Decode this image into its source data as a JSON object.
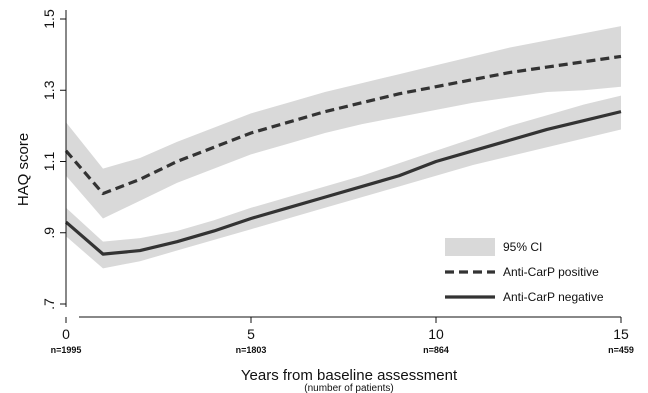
{
  "chart_data": {
    "type": "line",
    "title": "",
    "xlabel": "Years from baseline assessment",
    "xlabel_sub": "(number of patients)",
    "ylabel": "HAQ score",
    "xlim": [
      0,
      15
    ],
    "ylim": [
      0.7,
      1.5
    ],
    "x_ticks": [
      0,
      5,
      10,
      15
    ],
    "x_tick_labels": [
      "0",
      "5",
      "10",
      "15"
    ],
    "y_ticks": [
      0.7,
      0.9,
      1.1,
      1.3,
      1.5
    ],
    "y_tick_labels": [
      ".7",
      ".9",
      "1.1",
      "1.3",
      "1.5"
    ],
    "patient_counts": [
      "n=1995",
      "n=1803",
      "n=864",
      "n=459"
    ],
    "grid": false,
    "legend_position": "bottom-right",
    "legend": [
      {
        "label": "95% CI",
        "kind": "band"
      },
      {
        "label": "Anti-CarP positive",
        "kind": "dashed"
      },
      {
        "label": "Anti-CarP negative",
        "kind": "solid"
      }
    ],
    "x": [
      0,
      1,
      2,
      3,
      4,
      5,
      6,
      7,
      8,
      9,
      10,
      11,
      12,
      13,
      14,
      15
    ],
    "series": [
      {
        "name": "Anti-CarP positive",
        "style": "dashed",
        "color": "#333333",
        "values": [
          1.13,
          1.01,
          1.05,
          1.1,
          1.14,
          1.18,
          1.21,
          1.24,
          1.265,
          1.29,
          1.31,
          1.33,
          1.35,
          1.365,
          1.38,
          1.395
        ],
        "ci_lower": [
          1.06,
          0.94,
          0.99,
          1.04,
          1.08,
          1.12,
          1.15,
          1.18,
          1.205,
          1.225,
          1.245,
          1.265,
          1.28,
          1.295,
          1.3,
          1.31
        ],
        "ci_upper": [
          1.21,
          1.08,
          1.11,
          1.155,
          1.195,
          1.235,
          1.265,
          1.295,
          1.32,
          1.345,
          1.37,
          1.395,
          1.42,
          1.44,
          1.46,
          1.48
        ]
      },
      {
        "name": "Anti-CarP negative",
        "style": "solid",
        "color": "#333333",
        "values": [
          0.93,
          0.84,
          0.85,
          0.875,
          0.905,
          0.94,
          0.97,
          1.0,
          1.03,
          1.06,
          1.1,
          1.13,
          1.16,
          1.19,
          1.215,
          1.24
        ],
        "ci_lower": [
          0.89,
          0.8,
          0.82,
          0.85,
          0.88,
          0.91,
          0.94,
          0.97,
          1.0,
          1.03,
          1.06,
          1.09,
          1.115,
          1.14,
          1.165,
          1.19
        ],
        "ci_upper": [
          0.97,
          0.875,
          0.885,
          0.905,
          0.935,
          0.97,
          1.0,
          1.03,
          1.06,
          1.095,
          1.13,
          1.165,
          1.2,
          1.23,
          1.26,
          1.285
        ]
      }
    ],
    "colors": {
      "band": "#d9d9d9",
      "line": "#333333",
      "axis": "#111111"
    }
  }
}
